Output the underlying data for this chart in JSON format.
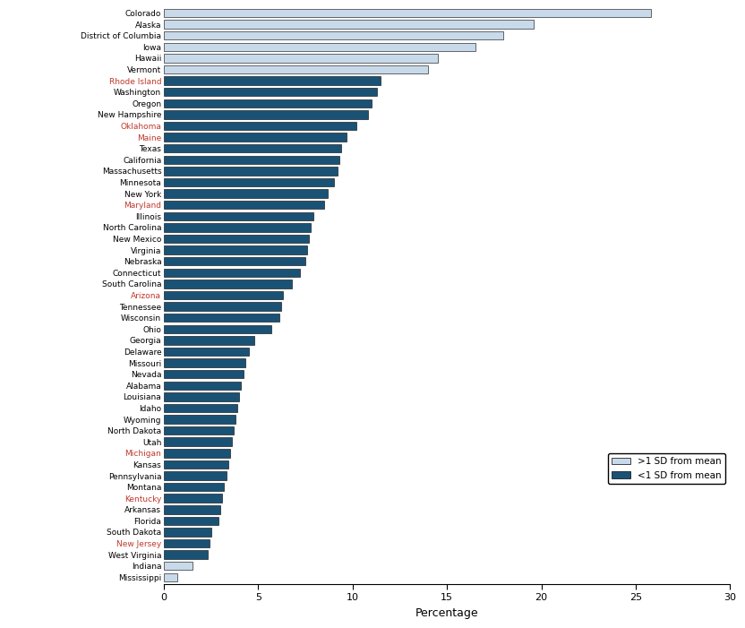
{
  "states": [
    "Colorado",
    "Alaska",
    "District of Columbia",
    "Iowa",
    "Hawaii",
    "Vermont",
    "Rhode Island",
    "Washington",
    "Oregon",
    "New Hampshire",
    "Oklahoma",
    "Maine",
    "Texas",
    "California",
    "Massachusetts",
    "Minnesota",
    "New York",
    "Maryland",
    "Illinois",
    "North Carolina",
    "New Mexico",
    "Virginia",
    "Nebraska",
    "Connecticut",
    "South Carolina",
    "Arizona",
    "Tennessee",
    "Wisconsin",
    "Ohio",
    "Georgia",
    "Delaware",
    "Missouri",
    "Nevada",
    "Alabama",
    "Louisiana",
    "Idaho",
    "Wyoming",
    "North Dakota",
    "Utah",
    "Michigan",
    "Kansas",
    "Pennsylvania",
    "Montana",
    "Kentucky",
    "Arkansas",
    "Florida",
    "South Dakota",
    "New Jersey",
    "West Virginia",
    "Indiana",
    "Mississippi"
  ],
  "values": [
    25.8,
    19.6,
    18.0,
    16.5,
    14.5,
    14.0,
    11.5,
    11.3,
    11.0,
    10.8,
    10.2,
    9.7,
    9.4,
    9.3,
    9.2,
    9.0,
    8.7,
    8.5,
    7.9,
    7.8,
    7.7,
    7.6,
    7.5,
    7.2,
    6.8,
    6.3,
    6.2,
    6.1,
    5.7,
    4.8,
    4.5,
    4.3,
    4.2,
    4.1,
    4.0,
    3.9,
    3.8,
    3.7,
    3.6,
    3.5,
    3.4,
    3.3,
    3.2,
    3.1,
    3.0,
    2.9,
    2.5,
    2.4,
    2.3,
    1.5,
    0.7
  ],
  "bar_colors": [
    "#c8d9ea",
    "#c8d9ea",
    "#c8d9ea",
    "#c8d9ea",
    "#c8d9ea",
    "#c8d9ea",
    "#1a5276",
    "#1a5276",
    "#1a5276",
    "#1a5276",
    "#1a5276",
    "#1a5276",
    "#1a5276",
    "#1a5276",
    "#1a5276",
    "#1a5276",
    "#1a5276",
    "#1a5276",
    "#1a5276",
    "#1a5276",
    "#1a5276",
    "#1a5276",
    "#1a5276",
    "#1a5276",
    "#1a5276",
    "#1a5276",
    "#1a5276",
    "#1a5276",
    "#1a5276",
    "#1a5276",
    "#1a5276",
    "#1a5276",
    "#1a5276",
    "#1a5276",
    "#1a5276",
    "#1a5276",
    "#1a5276",
    "#1a5276",
    "#1a5276",
    "#1a5276",
    "#1a5276",
    "#1a5276",
    "#1a5276",
    "#1a5276",
    "#1a5276",
    "#1a5276",
    "#1a5276",
    "#1a5276",
    "#1a5276",
    "#c8d9ea",
    "#c8d9ea"
  ],
  "label_colors": {
    "Colorado": "#000000",
    "Alaska": "#000000",
    "District of Columbia": "#000000",
    "Iowa": "#000000",
    "Hawaii": "#000000",
    "Vermont": "#000000",
    "Rhode Island": "#c0392b",
    "Washington": "#000000",
    "Oregon": "#000000",
    "New Hampshire": "#000000",
    "Oklahoma": "#c0392b",
    "Maine": "#c0392b",
    "Texas": "#000000",
    "California": "#000000",
    "Massachusetts": "#000000",
    "Minnesota": "#000000",
    "New York": "#000000",
    "Maryland": "#c0392b",
    "Illinois": "#000000",
    "North Carolina": "#000000",
    "New Mexico": "#000000",
    "Virginia": "#000000",
    "Nebraska": "#000000",
    "Connecticut": "#000000",
    "South Carolina": "#000000",
    "Arizona": "#c0392b",
    "Tennessee": "#000000",
    "Wisconsin": "#000000",
    "Ohio": "#000000",
    "Georgia": "#000000",
    "Delaware": "#000000",
    "Missouri": "#000000",
    "Nevada": "#000000",
    "Alabama": "#000000",
    "Louisiana": "#000000",
    "Idaho": "#000000",
    "Wyoming": "#000000",
    "North Dakota": "#000000",
    "Utah": "#000000",
    "Michigan": "#c0392b",
    "Kansas": "#000000",
    "Pennsylvania": "#000000",
    "Montana": "#000000",
    "Kentucky": "#c0392b",
    "Arkansas": "#000000",
    "Florida": "#000000",
    "South Dakota": "#000000",
    "New Jersey": "#c0392b",
    "West Virginia": "#000000",
    "Indiana": "#000000",
    "Mississippi": "#000000"
  },
  "xlabel": "Percentage",
  "xlim": [
    0,
    30
  ],
  "xticks": [
    0,
    5,
    10,
    15,
    20,
    25,
    30
  ],
  "legend_labels": [
    ">1 SD from mean",
    "<1 SD from mean"
  ],
  "legend_colors": [
    "#c8d9ea",
    "#1a5276"
  ],
  "bar_edge_color": "#000000",
  "bar_height": 0.75,
  "figsize": [
    8.32,
    7.01
  ],
  "dpi": 100
}
